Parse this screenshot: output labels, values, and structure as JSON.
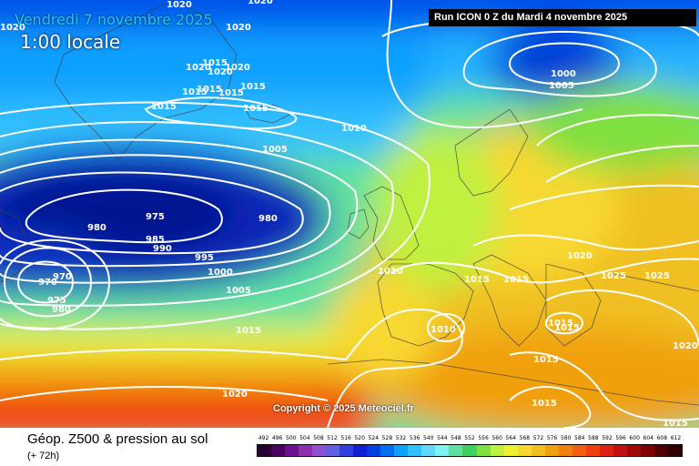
{
  "header": {
    "date": "Vendredi 7 novembre 2025",
    "time": "1:00 locale",
    "run": "Run ICON 0 Z du Mardi 4 novembre 2025"
  },
  "copyright": "Copyright © 2025 Meteociel.fr",
  "footer": {
    "title": "Géop. Z500 & pression au sol",
    "subtitle": "(+ 72h)"
  },
  "legend": {
    "values": [
      "492",
      "496",
      "500",
      "504",
      "508",
      "512",
      "516",
      "520",
      "524",
      "528",
      "532",
      "536",
      "540",
      "544",
      "548",
      "552",
      "556",
      "560",
      "564",
      "568",
      "572",
      "576",
      "580",
      "584",
      "588",
      "592",
      "596",
      "600",
      "604",
      "608",
      "612"
    ],
    "colors": [
      "#2a0030",
      "#4a0060",
      "#6a1090",
      "#8a30b0",
      "#9050d0",
      "#6060e0",
      "#3040e0",
      "#1020d0",
      "#0040e0",
      "#0070f0",
      "#10a0ff",
      "#30c0ff",
      "#60d8ff",
      "#80f0f0",
      "#60e0a0",
      "#40d060",
      "#80e040",
      "#c0f040",
      "#f0f030",
      "#f8d830",
      "#f0c020",
      "#f0a010",
      "#f08010",
      "#f06010",
      "#f04010",
      "#e02010",
      "#c01010",
      "#a00808",
      "#800000",
      "#500000",
      "#300000"
    ]
  },
  "isobars": [
    {
      "label": "1020"
    },
    {
      "label": "1020"
    },
    {
      "label": "1020"
    },
    {
      "label": "1020"
    },
    {
      "label": "1015"
    },
    {
      "label": "1020"
    },
    {
      "label": "1020"
    },
    {
      "label": "1015"
    },
    {
      "label": "1020"
    },
    {
      "label": "1015"
    },
    {
      "label": "1015"
    },
    {
      "label": "1015"
    },
    {
      "label": "1015"
    },
    {
      "label": "1015"
    },
    {
      "label": "1010"
    },
    {
      "label": "1005"
    },
    {
      "label": "1000"
    },
    {
      "label": "1005"
    },
    {
      "label": "975"
    },
    {
      "label": "980"
    },
    {
      "label": "980"
    },
    {
      "label": "985"
    },
    {
      "label": "990"
    },
    {
      "label": "995"
    },
    {
      "label": "1000"
    },
    {
      "label": "1005"
    },
    {
      "label": "970"
    },
    {
      "label": "970"
    },
    {
      "label": "975"
    },
    {
      "label": "980"
    },
    {
      "label": "1010"
    },
    {
      "label": "1015"
    },
    {
      "label": "1015"
    },
    {
      "label": "1020"
    },
    {
      "label": "1025"
    },
    {
      "label": "1025"
    },
    {
      "label": "1010"
    },
    {
      "label": "1015"
    },
    {
      "label": "1015"
    },
    {
      "label": "1015"
    },
    {
      "label": "1015"
    },
    {
      "label": "1020"
    },
    {
      "label": "1015"
    },
    {
      "label": "1020"
    },
    {
      "label": "1015"
    }
  ]
}
